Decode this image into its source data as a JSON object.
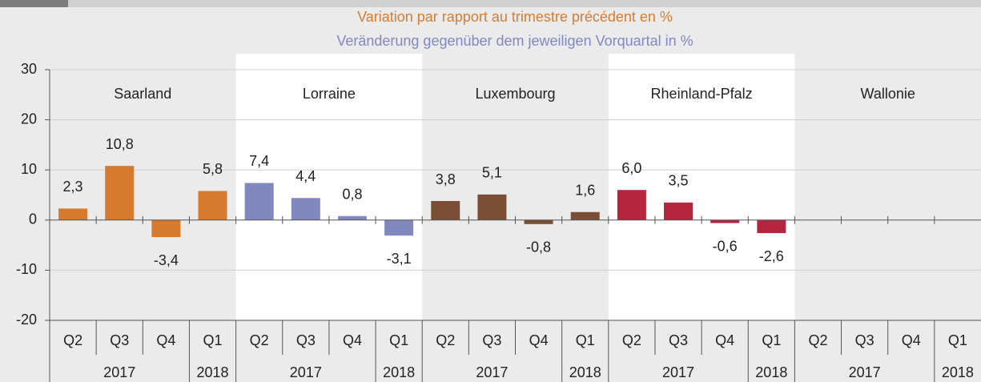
{
  "chart_data": {
    "type": "bar",
    "title": "Variation par rapport au trimestre précédent en %",
    "subtitle": "Veränderung gegenüber dem jeweiligen Vorquartal in %",
    "title_color": "#d97b30",
    "subtitle_color": "#8189c0",
    "quarters": [
      "Q2",
      "Q3",
      "Q4",
      "Q1"
    ],
    "years": [
      "2017",
      "2018"
    ],
    "ylim": [
      -20,
      30
    ],
    "yticks": [
      -20,
      -10,
      0,
      10,
      20,
      30
    ],
    "grid": true,
    "series": [
      {
        "name": "Saarland",
        "color": "#d57a2f",
        "values": [
          2.3,
          10.8,
          -3.4,
          5.8
        ],
        "value_labels": [
          "2,3",
          "10,8",
          "-3,4",
          "5,8"
        ]
      },
      {
        "name": "Lorraine",
        "color": "#8088bd",
        "values": [
          7.4,
          4.4,
          0.8,
          -3.1
        ],
        "value_labels": [
          "7,4",
          "4,4",
          "0,8",
          "-3,1"
        ]
      },
      {
        "name": "Luxembourg",
        "color": "#7a4e35",
        "values": [
          3.8,
          5.1,
          -0.8,
          1.6
        ],
        "value_labels": [
          "3,8",
          "5,1",
          "-0,8",
          "1,6"
        ]
      },
      {
        "name": "Rheinland-Pfalz",
        "color": "#b5253f",
        "values": [
          6.0,
          3.5,
          -0.6,
          -2.6
        ],
        "value_labels": [
          "6,0",
          "3,5",
          "-0,6",
          "-2,6"
        ]
      },
      {
        "name": "Wallonie",
        "color": "#888888",
        "values": [
          null,
          null,
          null,
          null
        ],
        "value_labels": [
          null,
          null,
          null,
          null
        ]
      }
    ]
  }
}
